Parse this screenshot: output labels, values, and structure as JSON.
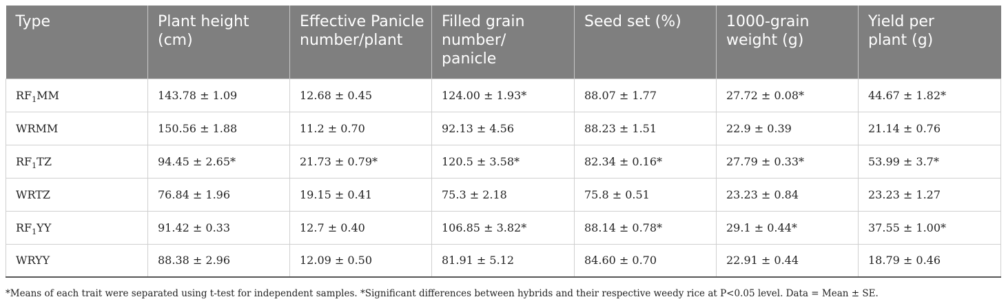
{
  "headers": [
    "Type",
    "Plant height (cm)",
    "Effective Panicle number/plant",
    "Filled grain number/ panicle",
    "Seed set (%)",
    "1000-grain weight (g)",
    "Yield per plant (g)"
  ],
  "rows": [
    {
      "type_pre": "RF",
      "type_sub": "1",
      "type_post": "MM",
      "cells": [
        "143.78 ± 1.09",
        "12.68 ± 0.45",
        "124.00 ± 1.93*",
        "88.07 ± 1.77",
        "27.72 ± 0.08*",
        "44.67 ± 1.82*"
      ]
    },
    {
      "type_pre": "WRMM",
      "type_sub": "",
      "type_post": "",
      "cells": [
        "150.56 ± 1.88",
        "11.2 ± 0.70",
        "92.13 ± 4.56",
        "88.23 ± 1.51",
        "22.9 ± 0.39",
        "21.14 ± 0.76"
      ]
    },
    {
      "type_pre": "RF",
      "type_sub": "1",
      "type_post": "TZ",
      "cells": [
        "94.45 ± 2.65*",
        "21.73 ± 0.79*",
        "120.5 ± 3.58*",
        "82.34 ± 0.16*",
        "27.79 ± 0.33*",
        "53.99 ± 3.7*"
      ]
    },
    {
      "type_pre": "WRTZ",
      "type_sub": "",
      "type_post": "",
      "cells": [
        "76.84 ± 1.96",
        "19.15 ± 0.41",
        "75.3 ± 2.18",
        "75.8 ± 0.51",
        "23.23 ± 0.84",
        "23.23 ± 1.27"
      ]
    },
    {
      "type_pre": "RF",
      "type_sub": "1",
      "type_post": "YY",
      "cells": [
        "91.42 ± 0.33",
        "12.7 ± 0.40",
        "106.85 ± 3.82*",
        "88.14 ± 0.78*",
        "29.1 ± 0.44*",
        "37.55 ± 1.00*"
      ]
    },
    {
      "type_pre": "WRYY",
      "type_sub": "",
      "type_post": "",
      "cells": [
        "88.38 ± 2.96",
        "12.09 ± 0.50",
        "81.91 ± 5.12",
        "84.60 ± 0.70",
        "22.91 ± 0.44",
        "18.79 ± 0.46"
      ]
    }
  ],
  "footnote": "*Means of each trait were separated using t-test for independent samples. *Significant differences between hybrids and their respective weedy rice at P<0.05 level. Data = Mean ± SE."
}
